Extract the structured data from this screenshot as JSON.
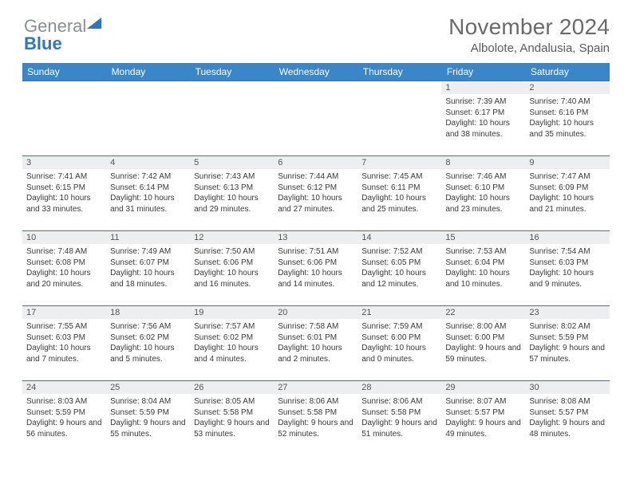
{
  "logo": {
    "gray": "General",
    "blue": "Blue"
  },
  "header": {
    "title": "November 2024",
    "location": "Albolote, Andalusia, Spain"
  },
  "calendar": {
    "header_bg": "#3b86c7",
    "header_fg": "#ffffff",
    "daynum_bg": "#eceef0",
    "row_border": "#3b73a7",
    "columns": [
      "Sunday",
      "Monday",
      "Tuesday",
      "Wednesday",
      "Thursday",
      "Friday",
      "Saturday"
    ],
    "cell_fontsize": 10,
    "header_fontsize": 12,
    "weeks": [
      [
        {
          "num": "",
          "lines": []
        },
        {
          "num": "",
          "lines": []
        },
        {
          "num": "",
          "lines": []
        },
        {
          "num": "",
          "lines": []
        },
        {
          "num": "",
          "lines": []
        },
        {
          "num": "1",
          "lines": [
            "Sunrise: 7:39 AM",
            "Sunset: 6:17 PM",
            "Daylight: 10 hours and 38 minutes."
          ]
        },
        {
          "num": "2",
          "lines": [
            "Sunrise: 7:40 AM",
            "Sunset: 6:16 PM",
            "Daylight: 10 hours and 35 minutes."
          ]
        }
      ],
      [
        {
          "num": "3",
          "lines": [
            "Sunrise: 7:41 AM",
            "Sunset: 6:15 PM",
            "Daylight: 10 hours and 33 minutes."
          ]
        },
        {
          "num": "4",
          "lines": [
            "Sunrise: 7:42 AM",
            "Sunset: 6:14 PM",
            "Daylight: 10 hours and 31 minutes."
          ]
        },
        {
          "num": "5",
          "lines": [
            "Sunrise: 7:43 AM",
            "Sunset: 6:13 PM",
            "Daylight: 10 hours and 29 minutes."
          ]
        },
        {
          "num": "6",
          "lines": [
            "Sunrise: 7:44 AM",
            "Sunset: 6:12 PM",
            "Daylight: 10 hours and 27 minutes."
          ]
        },
        {
          "num": "7",
          "lines": [
            "Sunrise: 7:45 AM",
            "Sunset: 6:11 PM",
            "Daylight: 10 hours and 25 minutes."
          ]
        },
        {
          "num": "8",
          "lines": [
            "Sunrise: 7:46 AM",
            "Sunset: 6:10 PM",
            "Daylight: 10 hours and 23 minutes."
          ]
        },
        {
          "num": "9",
          "lines": [
            "Sunrise: 7:47 AM",
            "Sunset: 6:09 PM",
            "Daylight: 10 hours and 21 minutes."
          ]
        }
      ],
      [
        {
          "num": "10",
          "lines": [
            "Sunrise: 7:48 AM",
            "Sunset: 6:08 PM",
            "Daylight: 10 hours and 20 minutes."
          ]
        },
        {
          "num": "11",
          "lines": [
            "Sunrise: 7:49 AM",
            "Sunset: 6:07 PM",
            "Daylight: 10 hours and 18 minutes."
          ]
        },
        {
          "num": "12",
          "lines": [
            "Sunrise: 7:50 AM",
            "Sunset: 6:06 PM",
            "Daylight: 10 hours and 16 minutes."
          ]
        },
        {
          "num": "13",
          "lines": [
            "Sunrise: 7:51 AM",
            "Sunset: 6:06 PM",
            "Daylight: 10 hours and 14 minutes."
          ]
        },
        {
          "num": "14",
          "lines": [
            "Sunrise: 7:52 AM",
            "Sunset: 6:05 PM",
            "Daylight: 10 hours and 12 minutes."
          ]
        },
        {
          "num": "15",
          "lines": [
            "Sunrise: 7:53 AM",
            "Sunset: 6:04 PM",
            "Daylight: 10 hours and 10 minutes."
          ]
        },
        {
          "num": "16",
          "lines": [
            "Sunrise: 7:54 AM",
            "Sunset: 6:03 PM",
            "Daylight: 10 hours and 9 minutes."
          ]
        }
      ],
      [
        {
          "num": "17",
          "lines": [
            "Sunrise: 7:55 AM",
            "Sunset: 6:03 PM",
            "Daylight: 10 hours and 7 minutes."
          ]
        },
        {
          "num": "18",
          "lines": [
            "Sunrise: 7:56 AM",
            "Sunset: 6:02 PM",
            "Daylight: 10 hours and 5 minutes."
          ]
        },
        {
          "num": "19",
          "lines": [
            "Sunrise: 7:57 AM",
            "Sunset: 6:02 PM",
            "Daylight: 10 hours and 4 minutes."
          ]
        },
        {
          "num": "20",
          "lines": [
            "Sunrise: 7:58 AM",
            "Sunset: 6:01 PM",
            "Daylight: 10 hours and 2 minutes."
          ]
        },
        {
          "num": "21",
          "lines": [
            "Sunrise: 7:59 AM",
            "Sunset: 6:00 PM",
            "Daylight: 10 hours and 0 minutes."
          ]
        },
        {
          "num": "22",
          "lines": [
            "Sunrise: 8:00 AM",
            "Sunset: 6:00 PM",
            "Daylight: 9 hours and 59 minutes."
          ]
        },
        {
          "num": "23",
          "lines": [
            "Sunrise: 8:02 AM",
            "Sunset: 5:59 PM",
            "Daylight: 9 hours and 57 minutes."
          ]
        }
      ],
      [
        {
          "num": "24",
          "lines": [
            "Sunrise: 8:03 AM",
            "Sunset: 5:59 PM",
            "Daylight: 9 hours and 56 minutes."
          ]
        },
        {
          "num": "25",
          "lines": [
            "Sunrise: 8:04 AM",
            "Sunset: 5:59 PM",
            "Daylight: 9 hours and 55 minutes."
          ]
        },
        {
          "num": "26",
          "lines": [
            "Sunrise: 8:05 AM",
            "Sunset: 5:58 PM",
            "Daylight: 9 hours and 53 minutes."
          ]
        },
        {
          "num": "27",
          "lines": [
            "Sunrise: 8:06 AM",
            "Sunset: 5:58 PM",
            "Daylight: 9 hours and 52 minutes."
          ]
        },
        {
          "num": "28",
          "lines": [
            "Sunrise: 8:06 AM",
            "Sunset: 5:58 PM",
            "Daylight: 9 hours and 51 minutes."
          ]
        },
        {
          "num": "29",
          "lines": [
            "Sunrise: 8:07 AM",
            "Sunset: 5:57 PM",
            "Daylight: 9 hours and 49 minutes."
          ]
        },
        {
          "num": "30",
          "lines": [
            "Sunrise: 8:08 AM",
            "Sunset: 5:57 PM",
            "Daylight: 9 hours and 48 minutes."
          ]
        }
      ]
    ]
  }
}
